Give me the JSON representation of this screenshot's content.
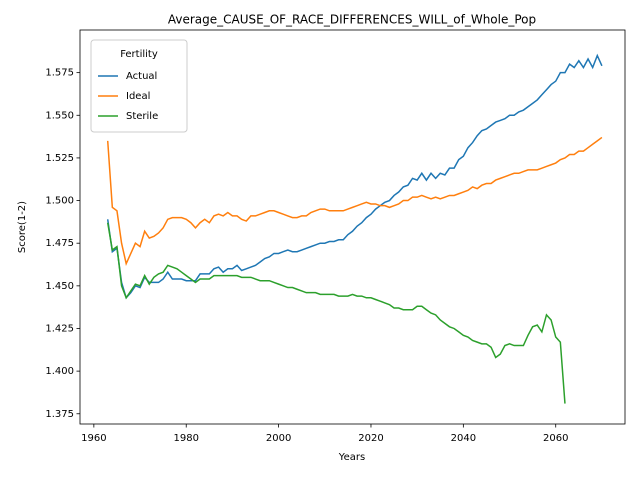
{
  "chart_data": {
    "type": "line",
    "title": "Average_CAUSE_OF_RACE_DIFFERENCES_WILL_of_Whole_Pop",
    "xlabel": "Years",
    "ylabel": "Score(1-2)",
    "legend_title": "Fertility",
    "legend": "upper left",
    "x": [
      1963,
      1964,
      1965,
      1966,
      1967,
      1968,
      1969,
      1970,
      1971,
      1972,
      1973,
      1974,
      1975,
      1976,
      1977,
      1978,
      1979,
      1980,
      1981,
      1982,
      1983,
      1984,
      1985,
      1986,
      1987,
      1988,
      1989,
      1990,
      1991,
      1992,
      1993,
      1994,
      1995,
      1996,
      1997,
      1998,
      1999,
      2000,
      2001,
      2002,
      2003,
      2004,
      2005,
      2006,
      2007,
      2008,
      2009,
      2010,
      2011,
      2012,
      2013,
      2014,
      2015,
      2016,
      2017,
      2018,
      2019,
      2020,
      2021,
      2022,
      2023,
      2024,
      2025,
      2026,
      2027,
      2028,
      2029,
      2030,
      2031,
      2032,
      2033,
      2034,
      2035,
      2036,
      2037,
      2038,
      2039,
      2040,
      2041,
      2042,
      2043,
      2044,
      2045,
      2046,
      2047,
      2048,
      2049,
      2050,
      2051,
      2052,
      2053,
      2054,
      2055,
      2056,
      2057,
      2058,
      2059,
      2060,
      2061,
      2062,
      2063,
      2064,
      2065,
      2066,
      2067,
      2068,
      2069,
      2070
    ],
    "series": [
      {
        "name": "Actual",
        "color": "#1f77b4",
        "values": [
          1.489,
          1.47,
          1.472,
          1.452,
          1.443,
          1.446,
          1.45,
          1.449,
          1.455,
          1.452,
          1.452,
          1.452,
          1.454,
          1.458,
          1.454,
          1.454,
          1.454,
          1.453,
          1.453,
          1.453,
          1.457,
          1.457,
          1.457,
          1.46,
          1.461,
          1.458,
          1.46,
          1.46,
          1.462,
          1.459,
          1.46,
          1.461,
          1.462,
          1.464,
          1.466,
          1.467,
          1.469,
          1.469,
          1.47,
          1.471,
          1.47,
          1.47,
          1.471,
          1.472,
          1.473,
          1.474,
          1.475,
          1.475,
          1.476,
          1.476,
          1.477,
          1.477,
          1.48,
          1.482,
          1.485,
          1.487,
          1.49,
          1.492,
          1.495,
          1.497,
          1.499,
          1.5,
          1.503,
          1.505,
          1.508,
          1.509,
          1.513,
          1.512,
          1.516,
          1.512,
          1.516,
          1.513,
          1.516,
          1.515,
          1.519,
          1.519,
          1.524,
          1.526,
          1.531,
          1.534,
          1.538,
          1.541,
          1.542,
          1.544,
          1.546,
          1.547,
          1.548,
          1.55,
          1.55,
          1.552,
          1.553,
          1.555,
          1.557,
          1.559,
          1.562,
          1.565,
          1.568,
          1.57,
          1.575,
          1.575,
          1.58,
          1.578,
          1.582,
          1.578,
          1.583,
          1.578,
          1.585,
          1.579
        ]
      },
      {
        "name": "Ideal",
        "color": "#ff7f0e",
        "values": [
          1.535,
          1.496,
          1.494,
          1.475,
          1.463,
          1.469,
          1.475,
          1.473,
          1.482,
          1.478,
          1.479,
          1.481,
          1.484,
          1.489,
          1.49,
          1.49,
          1.49,
          1.489,
          1.487,
          1.484,
          1.487,
          1.489,
          1.487,
          1.491,
          1.492,
          1.491,
          1.493,
          1.491,
          1.491,
          1.489,
          1.488,
          1.491,
          1.491,
          1.492,
          1.493,
          1.494,
          1.494,
          1.493,
          1.492,
          1.491,
          1.49,
          1.49,
          1.491,
          1.491,
          1.493,
          1.494,
          1.495,
          1.495,
          1.494,
          1.494,
          1.494,
          1.494,
          1.495,
          1.496,
          1.497,
          1.498,
          1.499,
          1.498,
          1.498,
          1.497,
          1.497,
          1.496,
          1.497,
          1.498,
          1.5,
          1.5,
          1.502,
          1.502,
          1.503,
          1.502,
          1.501,
          1.502,
          1.501,
          1.502,
          1.503,
          1.503,
          1.504,
          1.505,
          1.506,
          1.508,
          1.507,
          1.509,
          1.51,
          1.51,
          1.512,
          1.513,
          1.514,
          1.515,
          1.516,
          1.516,
          1.517,
          1.518,
          1.518,
          1.518,
          1.519,
          1.52,
          1.521,
          1.522,
          1.524,
          1.525,
          1.527,
          1.527,
          1.529,
          1.529,
          1.531,
          1.533,
          1.535,
          1.537
        ]
      },
      {
        "name": "Sterile",
        "color": "#2ca02c",
        "values": [
          1.487,
          1.471,
          1.473,
          1.45,
          1.443,
          1.447,
          1.451,
          1.45,
          1.456,
          1.451,
          1.455,
          1.457,
          1.458,
          1.462,
          1.461,
          1.46,
          1.458,
          1.456,
          1.454,
          1.452,
          1.454,
          1.454,
          1.454,
          1.456,
          1.456,
          1.456,
          1.456,
          1.456,
          1.456,
          1.455,
          1.455,
          1.455,
          1.454,
          1.453,
          1.453,
          1.453,
          1.452,
          1.451,
          1.45,
          1.449,
          1.449,
          1.448,
          1.447,
          1.446,
          1.446,
          1.446,
          1.445,
          1.445,
          1.445,
          1.445,
          1.444,
          1.444,
          1.444,
          1.445,
          1.444,
          1.444,
          1.443,
          1.443,
          1.442,
          1.441,
          1.44,
          1.439,
          1.437,
          1.437,
          1.436,
          1.436,
          1.436,
          1.438,
          1.438,
          1.436,
          1.434,
          1.433,
          1.43,
          1.428,
          1.426,
          1.425,
          1.423,
          1.421,
          1.42,
          1.418,
          1.417,
          1.416,
          1.416,
          1.414,
          1.408,
          1.41,
          1.415,
          1.416,
          1.415,
          1.415,
          1.415,
          1.421,
          1.426,
          1.427,
          1.423,
          1.433,
          1.43,
          1.42,
          1.417,
          1.381,
          null,
          null,
          null,
          null,
          null,
          null,
          null,
          null
        ]
      }
    ],
    "xlim": [
      1957,
      2075
    ],
    "xticks": [
      1960,
      1980,
      2000,
      2020,
      2040,
      2060
    ],
    "ylim": [
      1.369,
      1.6
    ],
    "yticks": [
      1.375,
      {
        "value": 1.4,
        "label": "1.400"
      },
      1.425,
      {
        "value": 1.45,
        "label": "1.450"
      },
      1.475,
      {
        "value": 1.5,
        "label": "1.500"
      },
      1.525,
      {
        "value": 1.55,
        "label": "1.550"
      },
      1.575
    ],
    "grid": false
  }
}
